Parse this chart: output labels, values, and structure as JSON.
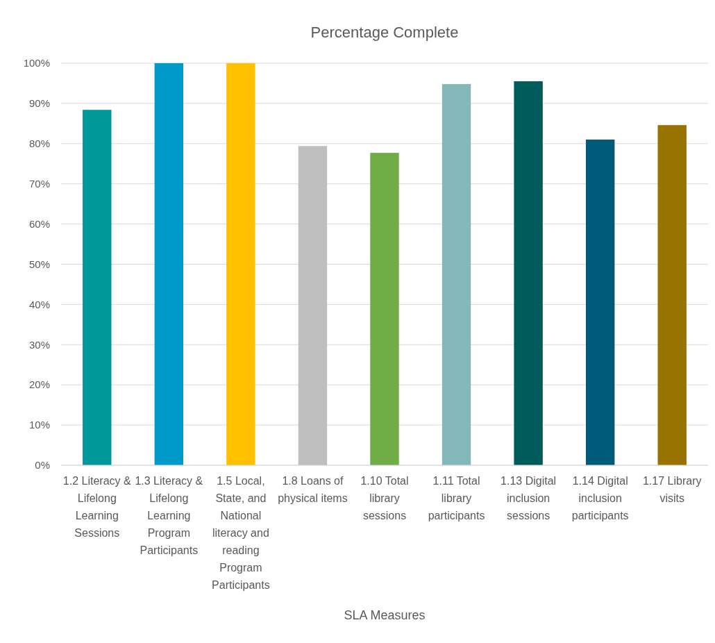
{
  "chart_data": {
    "type": "bar",
    "title": "Percentage Complete",
    "xlabel": "SLA Measures",
    "categories": [
      "1.2 Literacy & Lifelong Learning Sessions",
      "1.3 Literacy & Lifelong Learning Program Participants",
      "1.5 Local, State, and National literacy and reading Program Participants",
      "1.8 Loans of physical items",
      "1.10 Total library sessions",
      "1.11 Total library participants",
      "1.13 Digital inclusion sessions",
      "1.14 Digital inclusion participants",
      "1.17 Library visits"
    ],
    "values": [
      88.4,
      100,
      100,
      79.4,
      77.7,
      94.8,
      95.5,
      81.0,
      84.6
    ],
    "colors": [
      "#009999",
      "#0099cc",
      "#ffc000",
      "#bfbfbf",
      "#70ad47",
      "#84b8b8",
      "#005b5b",
      "#005a7a",
      "#997300"
    ],
    "ylim": [
      0,
      100
    ],
    "yticks": [
      {
        "value": 0,
        "label": "0%"
      },
      {
        "value": 10,
        "label": "10%"
      },
      {
        "value": 20,
        "label": "20%"
      },
      {
        "value": 30,
        "label": "30%"
      },
      {
        "value": 40,
        "label": "40%"
      },
      {
        "value": 50,
        "label": "50%"
      },
      {
        "value": 60,
        "label": "60%"
      },
      {
        "value": 70,
        "label": "70%"
      },
      {
        "value": 80,
        "label": "80%"
      },
      {
        "value": 90,
        "label": "90%"
      },
      {
        "value": 100,
        "label": "100%"
      }
    ],
    "grid": "y"
  }
}
